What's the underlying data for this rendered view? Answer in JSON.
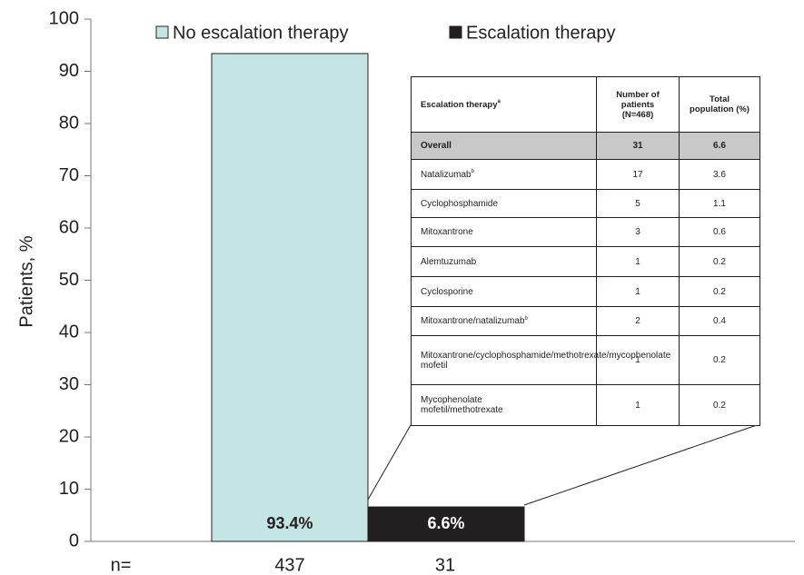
{
  "chart_data": {
    "type": "bar",
    "ylabel": "Patients, %",
    "categories": [
      "No escalation therapy",
      "Escalation therapy"
    ],
    "values": [
      93.4,
      6.6
    ],
    "value_labels": [
      "93.4%",
      "6.6%"
    ],
    "colors": [
      "#c5e5e5",
      "#231f20"
    ],
    "value_label_colors": [
      "#231f20",
      "#ffffff"
    ],
    "ylim": [
      0,
      100
    ],
    "yticks": [
      0,
      10,
      20,
      30,
      40,
      50,
      60,
      70,
      80,
      90,
      100
    ],
    "n_label": "n=",
    "n_values": [
      437,
      31
    ]
  },
  "table": {
    "header": [
      {
        "text": "Escalation therapy",
        "sup": "a"
      },
      {
        "text": "Number of patients (N=468)"
      },
      {
        "text": "Total population (%)"
      }
    ],
    "rows": [
      {
        "name": "Overall",
        "n": 31,
        "pct": 6.6
      },
      {
        "name": "Natalizumab",
        "sup": "b",
        "n": 17,
        "pct": 3.6
      },
      {
        "name": "Cyclophosphamide",
        "n": 5,
        "pct": 1.1
      },
      {
        "name": "Mitoxantrone",
        "n": 3,
        "pct": 0.6
      },
      {
        "name": "Alemtuzumab",
        "n": 1,
        "pct": 0.2
      },
      {
        "name": "Cyclosporine",
        "n": 1,
        "pct": 0.2
      },
      {
        "name": "Mitoxantrone/natalizumab",
        "sup": "b",
        "n": 2,
        "pct": 0.4
      },
      {
        "name": "Mitoxantrone/cyclophosphamide/methotrexate/mycophenolate mofetil",
        "n": 1,
        "pct": 0.2
      },
      {
        "name": "Mycophenolate mofetil/methotrexate",
        "n": 1,
        "pct": 0.2
      }
    ]
  }
}
